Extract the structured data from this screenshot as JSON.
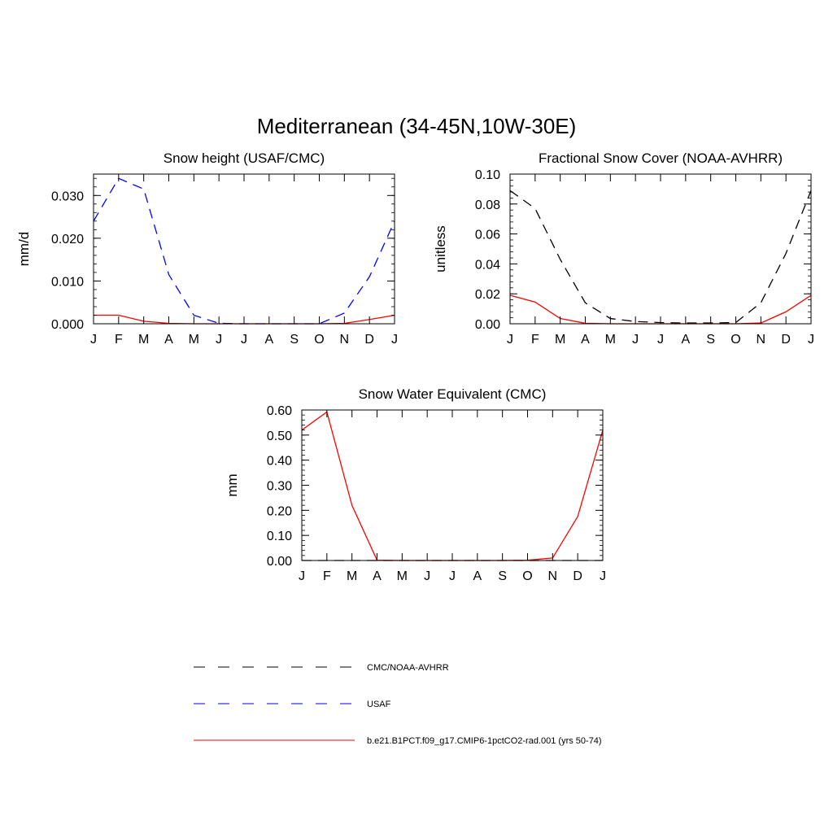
{
  "figure": {
    "title": "Mediterranean (34-45N,10W-30E)"
  },
  "legend": {
    "items": [
      {
        "label": "CMC/NOAA-AVHRR",
        "color": "#000000",
        "dash": "dashed"
      },
      {
        "label": "USAF",
        "color": "#0000ff",
        "dash": "dashed"
      },
      {
        "label": "b.e21.B1PCT.f09_g17.CMIP6-1pctCO2-rad.001 (yrs 50-74)",
        "color": "#ff0000",
        "dash": "solid"
      }
    ]
  },
  "chart_data": [
    {
      "type": "line",
      "title": "Snow height (USAF/CMC)",
      "xlabel": "",
      "ylabel": "mm/d",
      "categories": [
        "J",
        "F",
        "M",
        "A",
        "M",
        "J",
        "J",
        "A",
        "S",
        "O",
        "N",
        "D",
        "J"
      ],
      "ylim": [
        0,
        0.035
      ],
      "yticks": [
        0,
        0.01,
        0.02,
        0.03
      ],
      "ytick_labels": [
        "0.000",
        "0.010",
        "0.020",
        "0.030"
      ],
      "series": [
        {
          "name": "USAF",
          "color": "#0000ff",
          "dash": "dashed",
          "values": [
            0.024,
            0.034,
            0.0315,
            0.0115,
            0.002,
            0.0001,
            0,
            0,
            0,
            0,
            0.0025,
            0.011,
            0.024
          ]
        },
        {
          "name": "b.e21.B1PCT.f09_g17.CMIP6-1pctCO2-rad.001 (yrs 50-74)",
          "color": "#ff0000",
          "dash": "solid",
          "values": [
            0.002,
            0.002,
            0.0006,
            0.0001,
            0,
            0,
            0,
            0,
            0,
            0,
            0.0001,
            0.001,
            0.002
          ]
        }
      ]
    },
    {
      "type": "line",
      "title": "Fractional Snow Cover (NOAA-AVHRR)",
      "xlabel": "",
      "ylabel": "unitless",
      "categories": [
        "J",
        "F",
        "M",
        "A",
        "M",
        "J",
        "J",
        "A",
        "S",
        "O",
        "N",
        "D",
        "J"
      ],
      "ylim": [
        0,
        0.1
      ],
      "yticks": [
        0,
        0.02,
        0.04,
        0.06,
        0.08,
        0.1
      ],
      "ytick_labels": [
        "0.00",
        "0.02",
        "0.04",
        "0.06",
        "0.08",
        "0.10"
      ],
      "series": [
        {
          "name": "CMC/NOAA-AVHRR",
          "color": "#000000",
          "dash": "dashed",
          "values": [
            0.089,
            0.077,
            0.043,
            0.014,
            0.0035,
            0.0015,
            0.0008,
            0.0005,
            0.0005,
            0.0008,
            0.014,
            0.047,
            0.089
          ]
        },
        {
          "name": "b.e21.B1PCT.f09_g17.CMIP6-1pctCO2-rad.001 (yrs 50-74)",
          "color": "#ff0000",
          "dash": "solid",
          "values": [
            0.019,
            0.0145,
            0.0035,
            0.0003,
            0,
            0,
            0,
            0,
            0,
            0,
            0.0005,
            0.008,
            0.019
          ]
        }
      ]
    },
    {
      "type": "line",
      "title": "Snow Water Equivalent (CMC)",
      "xlabel": "",
      "ylabel": "mm",
      "categories": [
        "J",
        "F",
        "M",
        "A",
        "M",
        "J",
        "J",
        "A",
        "S",
        "O",
        "N",
        "D",
        "J"
      ],
      "ylim": [
        0,
        0.6
      ],
      "yticks": [
        0,
        0.1,
        0.2,
        0.3,
        0.4,
        0.5,
        0.6
      ],
      "ytick_labels": [
        "0.00",
        "0.10",
        "0.20",
        "0.30",
        "0.40",
        "0.50",
        "0.60"
      ],
      "series": [
        {
          "name": "CMC/NOAA-AVHRR",
          "color": "#000000",
          "dash": "dashed",
          "values": [
            0,
            0,
            0,
            0,
            0,
            0,
            0,
            0,
            0,
            0,
            0,
            0,
            0
          ]
        },
        {
          "name": "b.e21.B1PCT.f09_g17.CMIP6-1pctCO2-rad.001 (yrs 50-74)",
          "color": "#ff0000",
          "dash": "solid",
          "values": [
            0.52,
            0.592,
            0.22,
            0.001,
            0,
            0,
            0,
            0,
            0,
            0.001,
            0.01,
            0.175,
            0.52
          ]
        }
      ]
    }
  ]
}
